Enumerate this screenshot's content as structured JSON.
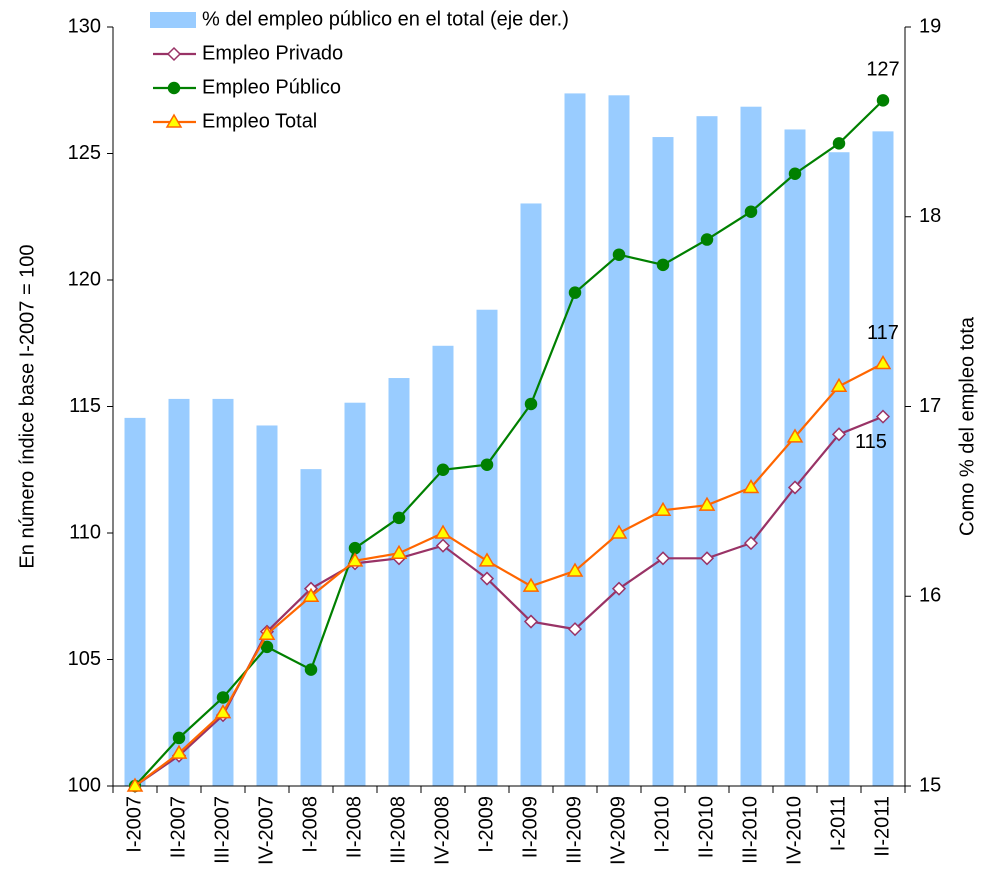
{
  "chart_data": {
    "type": "combo",
    "categories": [
      "I-2007",
      "II-2007",
      "III-2007",
      "IV-2007",
      "I-2008",
      "II-2008",
      "III-2008",
      "IV-2008",
      "I-2009",
      "II-2009",
      "III-2009",
      "IV-2009",
      "I-2010",
      "II-2010",
      "III-2010",
      "IV-2010",
      "I-2011",
      "II-2011"
    ],
    "y_label": "En número índice base I-2007 = 100",
    "y2_label": "Como % del empleo tota",
    "ylim": [
      100,
      130
    ],
    "yticks": [
      100,
      105,
      110,
      115,
      120,
      125,
      130
    ],
    "y2lim": [
      15,
      19
    ],
    "y2ticks": [
      15,
      16,
      17,
      18,
      19
    ],
    "legend": "top-left",
    "series": [
      {
        "name": "% del empleo público en el total (eje der.)",
        "type": "bar",
        "axis": "y2",
        "color": "#99ccff",
        "values": [
          16.94,
          17.04,
          17.04,
          16.9,
          16.67,
          17.02,
          17.15,
          17.32,
          17.51,
          18.07,
          18.65,
          18.64,
          18.42,
          18.53,
          18.58,
          18.46,
          18.34,
          18.45
        ]
      },
      {
        "name": "Empleo Privado",
        "type": "line",
        "color": "#993366",
        "marker": "diamond",
        "marker_fill": "#ffffff",
        "values": [
          100,
          101.2,
          102.8,
          106.1,
          107.8,
          108.8,
          109.0,
          109.5,
          108.2,
          106.5,
          106.2,
          107.8,
          109.0,
          109.0,
          109.6,
          111.8,
          113.9,
          114.6
        ],
        "value_labels": [
          null,
          null,
          null,
          null,
          null,
          null,
          null,
          null,
          null,
          null,
          null,
          null,
          null,
          null,
          null,
          null,
          null,
          "115"
        ]
      },
      {
        "name": "Empleo Público",
        "type": "line",
        "color": "#008000",
        "marker": "circle",
        "marker_fill": "#008000",
        "values": [
          100,
          101.9,
          103.5,
          105.5,
          104.6,
          109.4,
          110.6,
          112.5,
          112.7,
          115.1,
          119.5,
          121.0,
          120.6,
          121.6,
          122.7,
          124.2,
          125.4,
          127.1
        ],
        "value_labels": [
          null,
          null,
          null,
          null,
          null,
          null,
          null,
          null,
          null,
          null,
          null,
          null,
          null,
          null,
          null,
          null,
          null,
          "127"
        ]
      },
      {
        "name": "Empleo Total",
        "type": "line",
        "color": "#ff6600",
        "marker": "triangle",
        "marker_fill": "#ffff00",
        "values": [
          100,
          101.3,
          102.9,
          106.0,
          107.5,
          108.9,
          109.2,
          110.0,
          108.9,
          107.9,
          108.5,
          110.0,
          110.9,
          111.1,
          111.8,
          113.8,
          115.8,
          116.7
        ],
        "value_labels": [
          null,
          null,
          null,
          null,
          null,
          null,
          null,
          null,
          null,
          null,
          null,
          null,
          null,
          null,
          null,
          null,
          null,
          "117"
        ]
      }
    ]
  }
}
